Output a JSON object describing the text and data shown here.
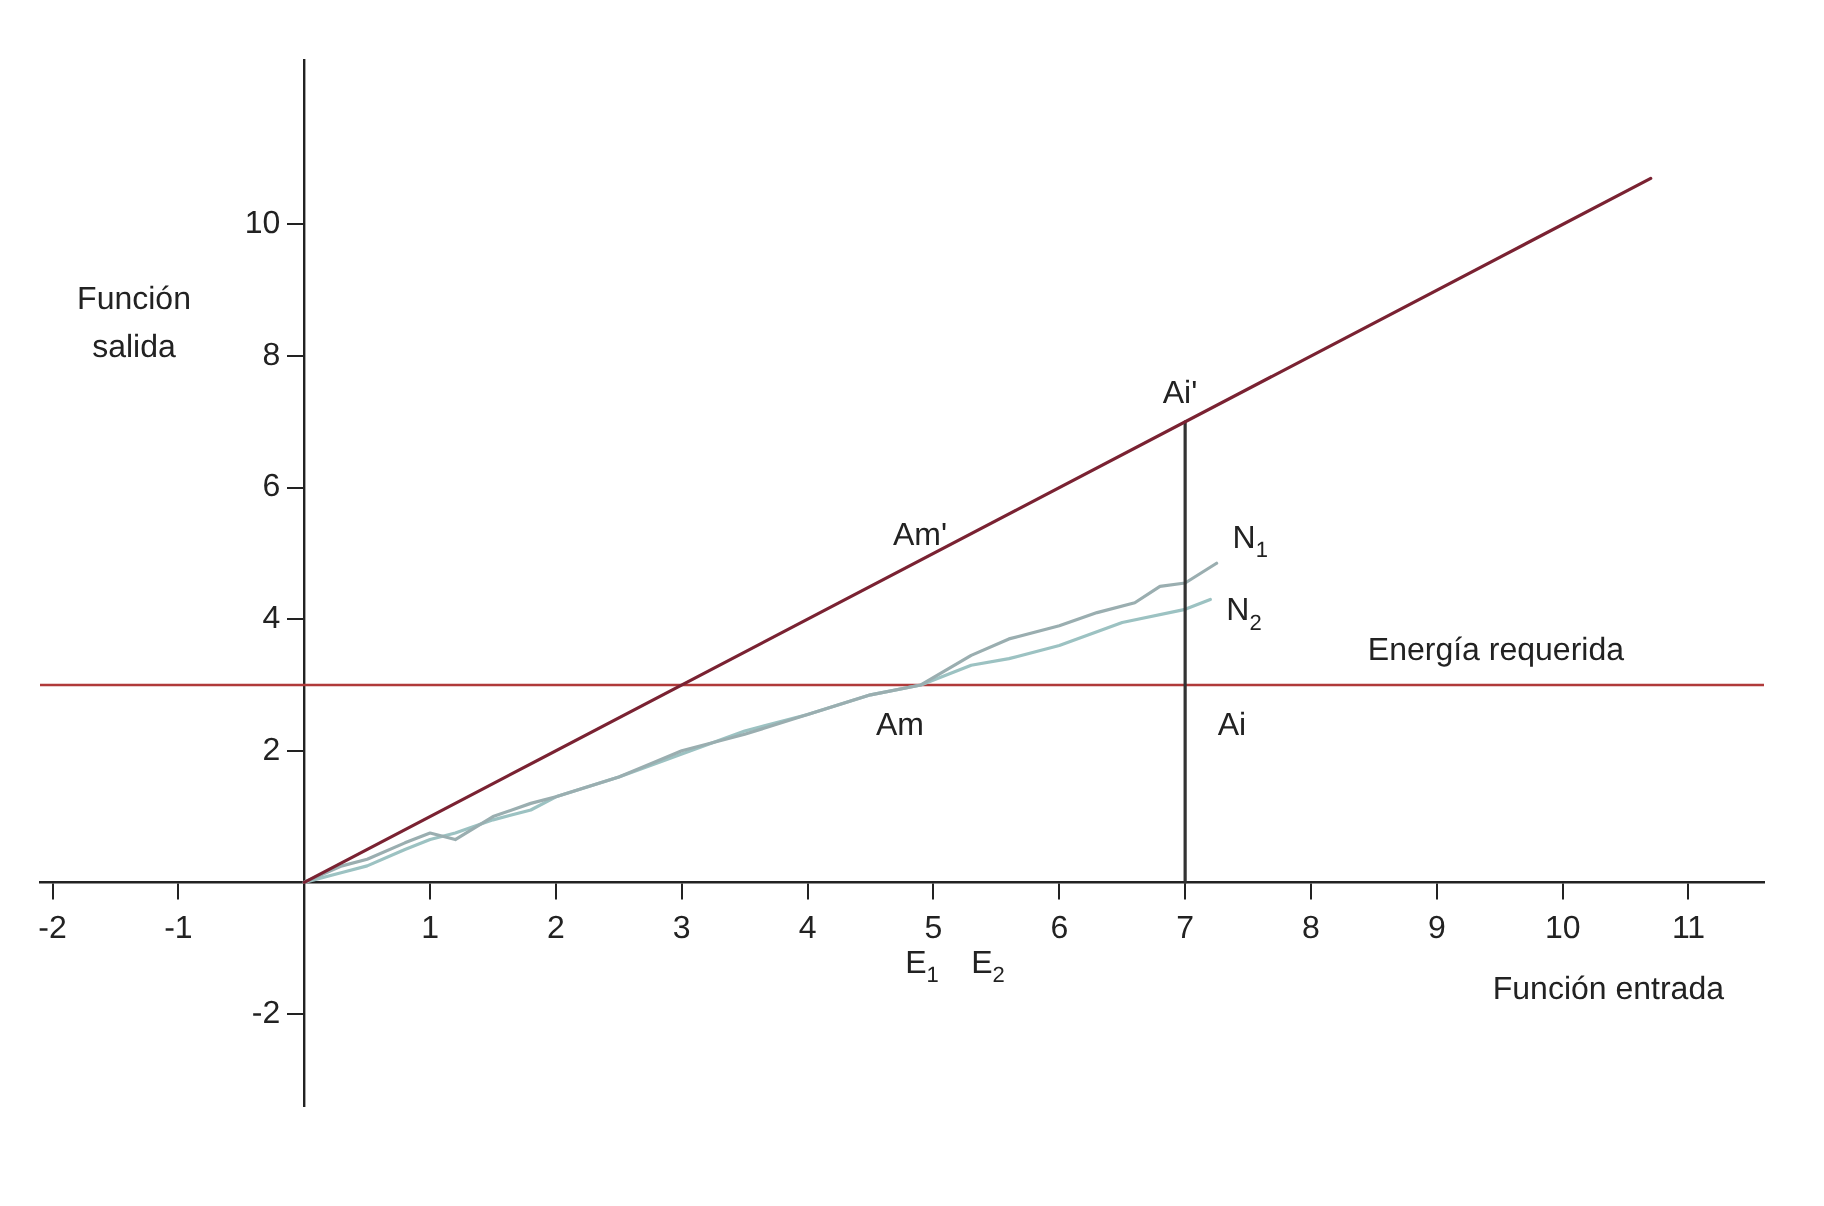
{
  "chart_data": {
    "type": "line",
    "xlabel": "Función entrada",
    "ylabel": "Función salida",
    "xlim": [
      -2.1,
      11.6
    ],
    "ylim": [
      -3.4,
      12.5
    ],
    "xticks": [
      -2,
      -1,
      1,
      2,
      3,
      4,
      5,
      6,
      7,
      8,
      9,
      10,
      11
    ],
    "yticks": [
      -2,
      2,
      4,
      6,
      8,
      10
    ],
    "grid": false,
    "legend": false,
    "marker": "none",
    "line_style": "solid",
    "series": [
      {
        "color": "#7a2232",
        "x": [
          0,
          10.7
        ],
        "values": [
          0,
          10.7
        ]
      },
      {
        "color": "#333333",
        "x": [
          7,
          7
        ],
        "values": [
          0,
          7
        ]
      },
      {
        "name": "N$_{1}$",
        "color": "#9aaeb0",
        "x": [
          0,
          0.3,
          0.5,
          0.8,
          1,
          1.2,
          1.5,
          1.8,
          2,
          2.5,
          3,
          3.5,
          4,
          4.5,
          4.9,
          5.3,
          5.6,
          6,
          6.3,
          6.6,
          6.8,
          7,
          7.25
        ],
        "values": [
          0,
          0.25,
          0.35,
          0.6,
          0.75,
          0.65,
          1.0,
          1.2,
          1.3,
          1.6,
          2.0,
          2.25,
          2.55,
          2.85,
          3.0,
          3.45,
          3.7,
          3.9,
          4.1,
          4.25,
          4.5,
          4.55,
          4.85
        ]
      },
      {
        "name": "N$_{2}$",
        "color": "#9cc2c2",
        "x": [
          0,
          0.3,
          0.5,
          0.8,
          1,
          1.2,
          1.5,
          1.8,
          2,
          2.5,
          3,
          3.5,
          4,
          4.5,
          4.9,
          5.3,
          5.6,
          6,
          6.5,
          7,
          7.2
        ],
        "values": [
          0,
          0.15,
          0.25,
          0.5,
          0.65,
          0.75,
          0.95,
          1.1,
          1.3,
          1.6,
          1.95,
          2.3,
          2.55,
          2.85,
          3.0,
          3.3,
          3.4,
          3.6,
          3.95,
          4.15,
          4.3
        ]
      }
    ],
    "ref_lines": [
      {
        "axis": "y",
        "value": 3,
        "label": "Energía requerida",
        "color": "#b03a3a"
      }
    ],
    "annotations": [
      "Am'",
      "Ai'",
      "Am",
      "Ai",
      "E$_{1}$",
      "E$_{2}$"
    ]
  }
}
